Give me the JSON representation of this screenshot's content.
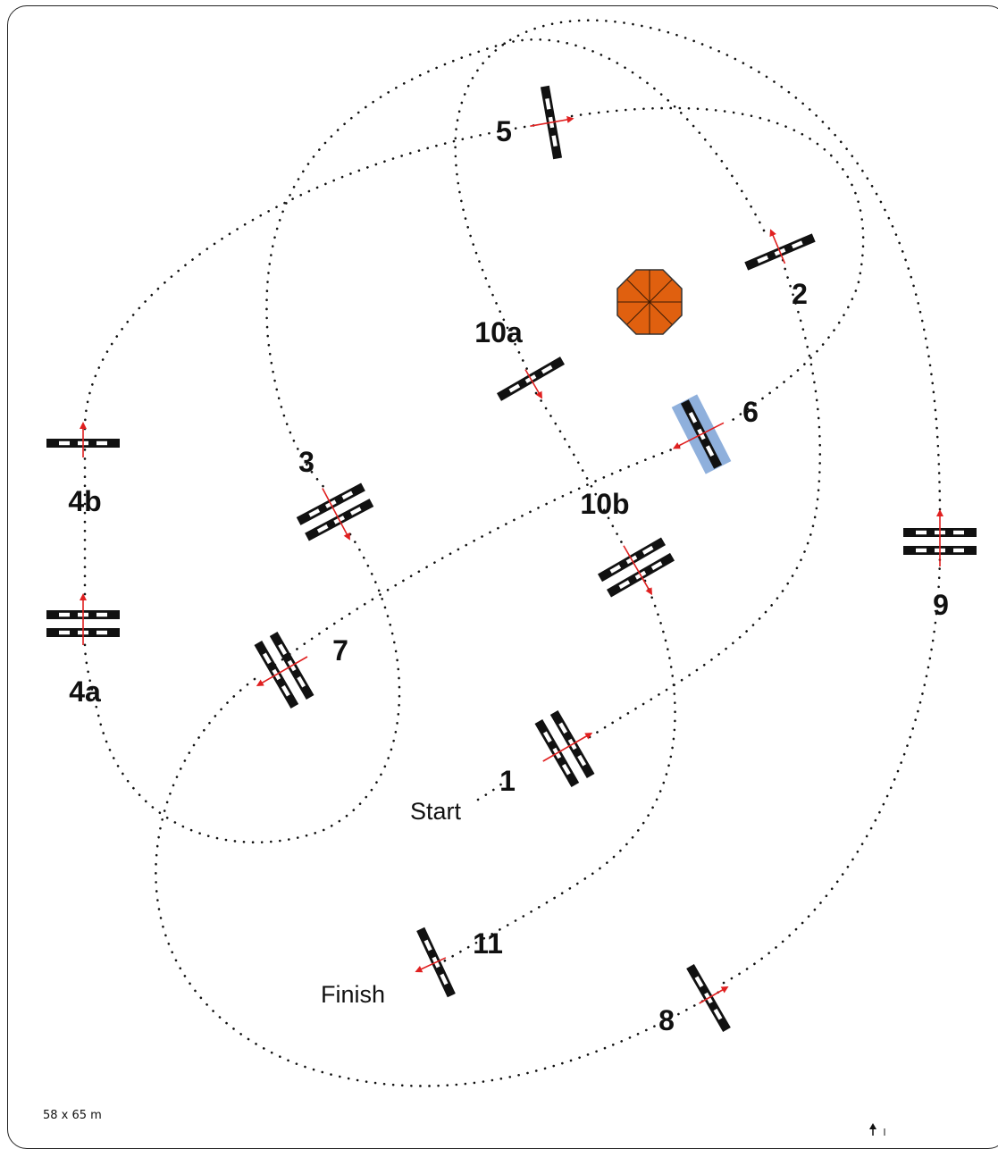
{
  "arena": {
    "size_label": "58 x 65 m"
  },
  "labels": {
    "start": "Start",
    "finish": "Finish"
  },
  "obstacles": [
    {
      "id": "1",
      "label": "1",
      "kind": "oxer"
    },
    {
      "id": "2",
      "label": "2",
      "kind": "vertical"
    },
    {
      "id": "3",
      "label": "3",
      "kind": "oxer"
    },
    {
      "id": "4a",
      "label": "4a",
      "kind": "oxer"
    },
    {
      "id": "4b",
      "label": "4b",
      "kind": "vertical"
    },
    {
      "id": "5",
      "label": "5",
      "kind": "vertical"
    },
    {
      "id": "6",
      "label": "6",
      "kind": "water-vertical"
    },
    {
      "id": "7",
      "label": "7",
      "kind": "oxer"
    },
    {
      "id": "8",
      "label": "8",
      "kind": "vertical"
    },
    {
      "id": "9",
      "label": "9",
      "kind": "oxer"
    },
    {
      "id": "10a",
      "label": "10a",
      "kind": "vertical"
    },
    {
      "id": "10b",
      "label": "10b",
      "kind": "oxer"
    },
    {
      "id": "11",
      "label": "11",
      "kind": "vertical"
    }
  ],
  "colors": {
    "rail_dark": "#111111",
    "rail_light": "#ffffff",
    "arrow": "#e02020",
    "water": "#8fb0dc",
    "octagon": "#e0600f"
  },
  "icons": {
    "decoration": "octagon-icon",
    "compass": "north-arrow-icon"
  }
}
